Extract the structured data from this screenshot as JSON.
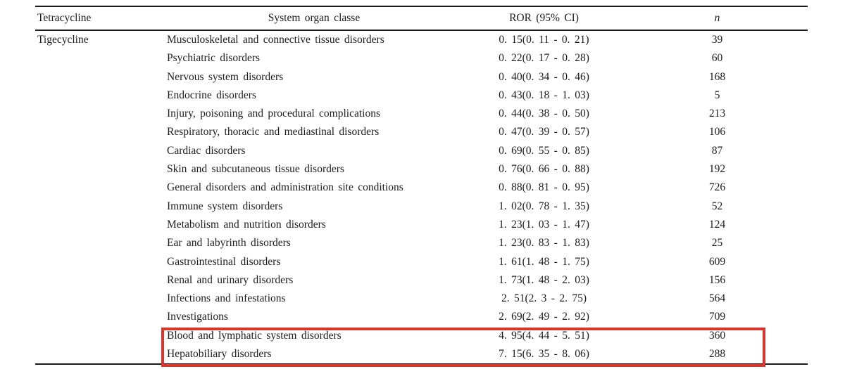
{
  "table": {
    "header": {
      "tetracycline": "Tetracycline",
      "soc": "System organ classe",
      "ror": "ROR (95% CI)",
      "n": "n"
    },
    "drug_group": "Tigecycline",
    "highlight_color": "#d9342e",
    "rows": [
      {
        "drug": "Tigecycline",
        "soc": "Musculoskeletal and connective tissue disorders",
        "ror": "0. 15(0. 11 - 0. 21)",
        "n": "39",
        "highlighted": false
      },
      {
        "drug": "",
        "soc": "Psychiatric disorders",
        "ror": "0. 22(0. 17 - 0. 28)",
        "n": "60",
        "highlighted": false
      },
      {
        "drug": "",
        "soc": "Nervous system disorders",
        "ror": "0. 40(0. 34 - 0. 46)",
        "n": "168",
        "highlighted": false
      },
      {
        "drug": "",
        "soc": "Endocrine disorders",
        "ror": "0. 43(0. 18 - 1. 03)",
        "n": "5",
        "highlighted": false
      },
      {
        "drug": "",
        "soc": "Injury, poisoning and procedural complications",
        "ror": "0. 44(0. 38 - 0. 50)",
        "n": "213",
        "highlighted": false
      },
      {
        "drug": "",
        "soc": "Respiratory, thoracic and mediastinal disorders",
        "ror": "0. 47(0. 39 - 0. 57)",
        "n": "106",
        "highlighted": false
      },
      {
        "drug": "",
        "soc": "Cardiac disorders",
        "ror": "0. 69(0. 55 - 0. 85)",
        "n": "87",
        "highlighted": false
      },
      {
        "drug": "",
        "soc": "Skin and subcutaneous tissue disorders",
        "ror": "0. 76(0. 66 - 0. 88)",
        "n": "192",
        "highlighted": false
      },
      {
        "drug": "",
        "soc": "General disorders and administration site conditions",
        "ror": "0. 88(0. 81 - 0. 95)",
        "n": "726",
        "highlighted": false
      },
      {
        "drug": "",
        "soc": "Immune system disorders",
        "ror": "1. 02(0. 78 - 1. 35)",
        "n": "52",
        "highlighted": false
      },
      {
        "drug": "",
        "soc": "Metabolism and nutrition disorders",
        "ror": "1. 23(1. 03 - 1. 47)",
        "n": "124",
        "highlighted": false
      },
      {
        "drug": "",
        "soc": "Ear and labyrinth disorders",
        "ror": "1. 23(0. 83 - 1. 83)",
        "n": "25",
        "highlighted": false
      },
      {
        "drug": "",
        "soc": "Gastrointestinal disorders",
        "ror": "1. 61(1. 48 - 1. 75)",
        "n": "609",
        "highlighted": false
      },
      {
        "drug": "",
        "soc": "Renal and urinary disorders",
        "ror": "1. 73(1. 48 - 2. 03)",
        "n": "156",
        "highlighted": false
      },
      {
        "drug": "",
        "soc": "Infections and infestations",
        "ror": "2. 51(2. 3 - 2. 75)",
        "n": "564",
        "highlighted": false
      },
      {
        "drug": "",
        "soc": "Investigations",
        "ror": "2. 69(2. 49 - 2. 92)",
        "n": "709",
        "highlighted": false
      },
      {
        "drug": "",
        "soc": "Blood and lymphatic system disorders",
        "ror": "4. 95(4. 44 - 5. 51)",
        "n": "360",
        "highlighted": true
      },
      {
        "drug": "",
        "soc": "Hepatobiliary disorders",
        "ror": "7. 15(6. 35 - 8. 06)",
        "n": "288",
        "highlighted": true
      }
    ]
  }
}
